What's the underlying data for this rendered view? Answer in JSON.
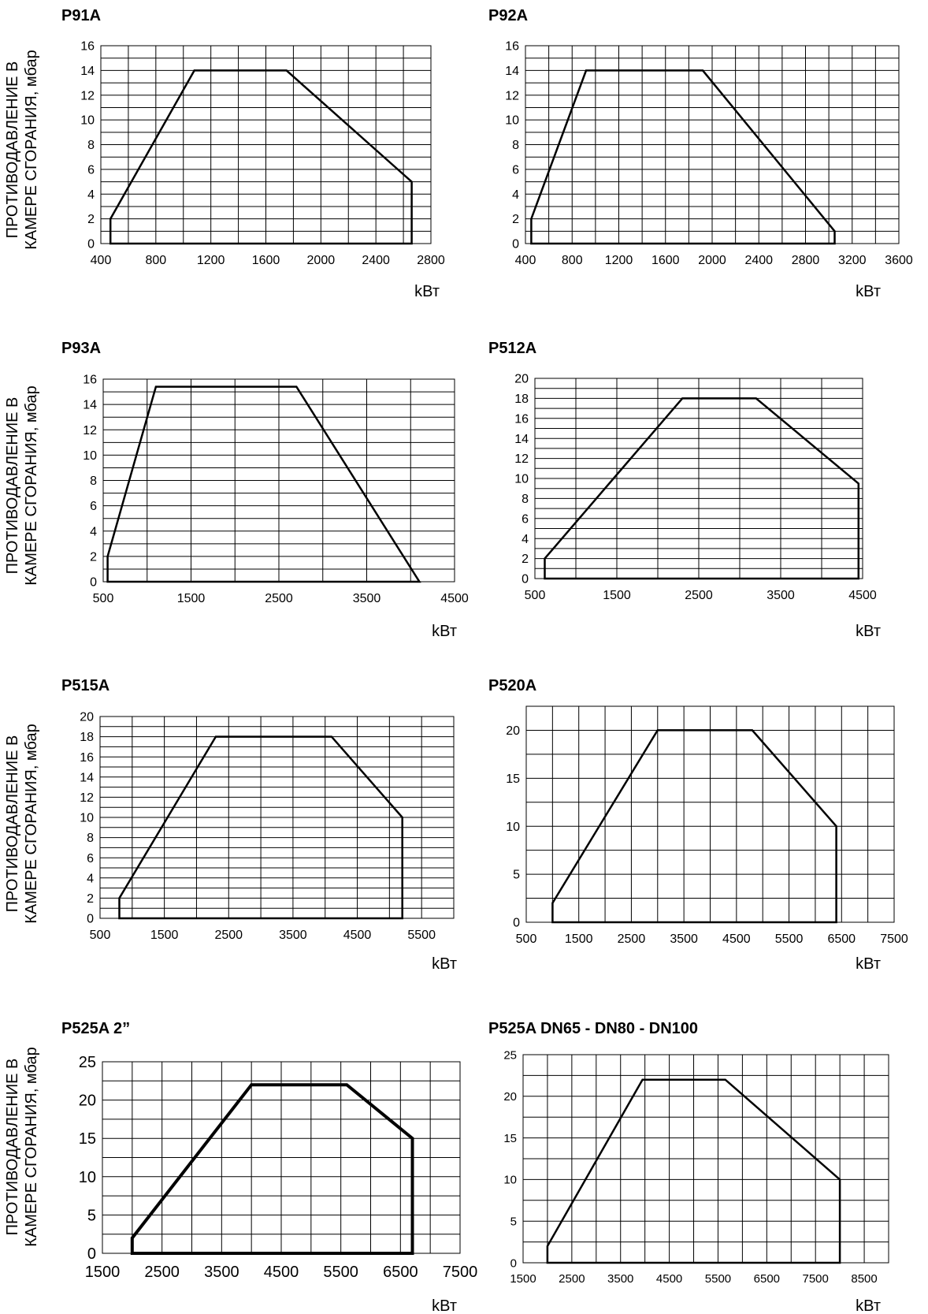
{
  "y_axis_label_line1": "ПРОТИВОДАВЛЕНИЕ В",
  "y_axis_label_line2": "КАМЕРЕ СГОРАНИЯ, мбар",
  "x_unit": "kВт",
  "chart_data": [
    {
      "type": "area",
      "title": "P91A",
      "xlabel": "kВт",
      "ylabel": "ПРОТИВОДАВЛЕНИЕ В КАМЕРЕ СГОРАНИЯ, мбар",
      "xlim": [
        400,
        2800
      ],
      "ylim": [
        0,
        16
      ],
      "x_ticks": [
        400,
        800,
        1200,
        1600,
        2000,
        2400,
        2800
      ],
      "y_ticks": [
        0,
        2,
        4,
        6,
        8,
        10,
        12,
        14,
        16
      ],
      "grid": true,
      "points": [
        [
          470,
          0
        ],
        [
          470,
          2
        ],
        [
          1080,
          14
        ],
        [
          1750,
          14
        ],
        [
          2660,
          5
        ],
        [
          2660,
          0
        ]
      ]
    },
    {
      "type": "area",
      "title": "P92A",
      "xlabel": "kВт",
      "ylabel": "",
      "xlim": [
        400,
        3600
      ],
      "ylim": [
        0,
        16
      ],
      "x_ticks": [
        400,
        800,
        1200,
        1600,
        2000,
        2400,
        2800,
        3200,
        3600
      ],
      "y_ticks": [
        0,
        2,
        4,
        6,
        8,
        10,
        12,
        14,
        16
      ],
      "grid": true,
      "points": [
        [
          450,
          0
        ],
        [
          450,
          2
        ],
        [
          920,
          14
        ],
        [
          1920,
          14
        ],
        [
          3050,
          1
        ],
        [
          3050,
          0
        ]
      ]
    },
    {
      "type": "area",
      "title": "P93A",
      "xlabel": "kВт",
      "ylabel": "ПРОТИВОДАВЛЕНИЕ В КАМЕРЕ СГОРАНИЯ, мбар",
      "xlim": [
        500,
        4500
      ],
      "ylim": [
        0,
        16
      ],
      "x_ticks": [
        500,
        1500,
        2500,
        3500,
        4500
      ],
      "y_ticks": [
        0,
        2,
        4,
        6,
        8,
        10,
        12,
        14,
        16
      ],
      "grid": true,
      "points": [
        [
          550,
          0
        ],
        [
          550,
          2
        ],
        [
          1100,
          15.4
        ],
        [
          2700,
          15.4
        ],
        [
          4100,
          0
        ]
      ]
    },
    {
      "type": "area",
      "title": "P512A",
      "xlabel": "kВт",
      "ylabel": "",
      "xlim": [
        500,
        4500
      ],
      "ylim": [
        0,
        20
      ],
      "x_ticks": [
        500,
        1500,
        2500,
        3500,
        4500
      ],
      "y_ticks": [
        0,
        2,
        4,
        6,
        8,
        10,
        12,
        14,
        16,
        18,
        20
      ],
      "grid": true,
      "points": [
        [
          620,
          0
        ],
        [
          620,
          2
        ],
        [
          2300,
          18
        ],
        [
          3200,
          18
        ],
        [
          4450,
          9.5
        ],
        [
          4450,
          0
        ]
      ]
    },
    {
      "type": "area",
      "title": "P515A",
      "xlabel": "kВт",
      "ylabel": "ПРОТИВОДАВЛЕНИЕ В КАМЕРЕ СГОРАНИЯ, мбар",
      "xlim": [
        500,
        6000
      ],
      "ylim": [
        0,
        20
      ],
      "x_ticks": [
        500,
        1500,
        2500,
        3500,
        4500,
        5500
      ],
      "y_ticks": [
        0,
        2,
        4,
        6,
        8,
        10,
        12,
        14,
        16,
        18,
        20
      ],
      "grid": true,
      "points": [
        [
          800,
          0
        ],
        [
          800,
          2
        ],
        [
          2300,
          18
        ],
        [
          4100,
          18
        ],
        [
          5200,
          10
        ],
        [
          5200,
          0
        ]
      ]
    },
    {
      "type": "area",
      "title": "P520A",
      "xlabel": "kВт",
      "ylabel": "",
      "xlim": [
        500,
        7500
      ],
      "ylim": [
        0,
        22.5
      ],
      "x_ticks": [
        500,
        1500,
        2500,
        3500,
        4500,
        5500,
        6500,
        7500
      ],
      "y_ticks": [
        0,
        5,
        10,
        15,
        20
      ],
      "grid": true,
      "points": [
        [
          1000,
          0
        ],
        [
          1000,
          2
        ],
        [
          3000,
          20
        ],
        [
          4800,
          20
        ],
        [
          6400,
          10
        ],
        [
          6400,
          0
        ]
      ]
    },
    {
      "type": "area",
      "title": "P525A 2”",
      "xlabel": "kВт",
      "ylabel": "ПРОТИВОДАВЛЕНИЕ В КАМЕРЕ СГОРАНИЯ, мбар",
      "xlim": [
        1500,
        7500
      ],
      "ylim": [
        0,
        25
      ],
      "x_ticks": [
        1500,
        2500,
        3500,
        4500,
        5500,
        6500,
        7500
      ],
      "y_ticks": [
        0,
        5,
        10,
        15,
        20,
        25
      ],
      "grid": true,
      "points": [
        [
          2000,
          0
        ],
        [
          2000,
          2
        ],
        [
          4000,
          22
        ],
        [
          5600,
          22
        ],
        [
          6700,
          15
        ],
        [
          6700,
          0
        ]
      ]
    },
    {
      "type": "area",
      "title": "P525A  DN65 - DN80 - DN100",
      "xlabel": "kВт",
      "ylabel": "",
      "xlim": [
        1500,
        9000
      ],
      "ylim": [
        0,
        25
      ],
      "x_ticks": [
        1500,
        2500,
        3500,
        4500,
        5500,
        6500,
        7500,
        8500
      ],
      "y_ticks": [
        0,
        5,
        10,
        15,
        20,
        25
      ],
      "grid": true,
      "points": [
        [
          2000,
          0
        ],
        [
          2000,
          2
        ],
        [
          3950,
          22
        ],
        [
          5650,
          22
        ],
        [
          8000,
          10
        ],
        [
          8000,
          0
        ]
      ]
    }
  ]
}
